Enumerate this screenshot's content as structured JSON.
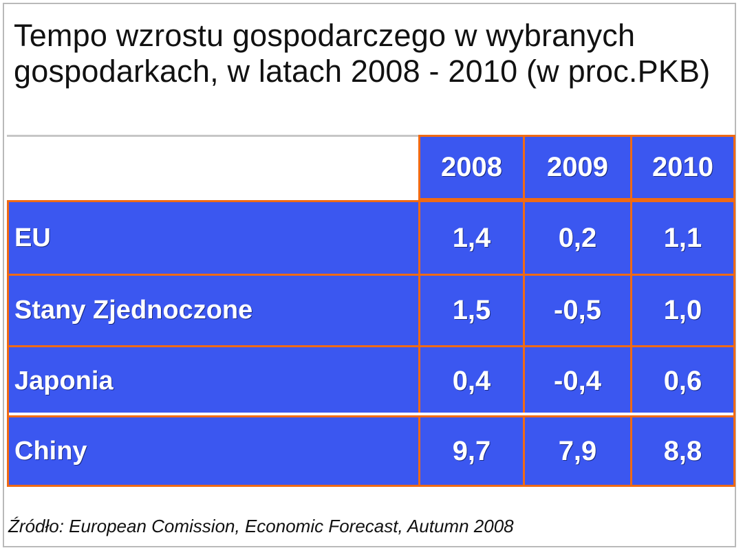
{
  "chart_data": {
    "type": "table",
    "title_line1": "Tempo wzrostu gospodarczego w wybranych",
    "title_line2": "gospodarkach, w latach 2008 - 2010 (w proc.PKB)",
    "columns": [
      "2008",
      "2009",
      "2010"
    ],
    "rows": [
      {
        "label": "EU",
        "values": [
          "1,4",
          "0,2",
          "1,1"
        ]
      },
      {
        "label": "Stany Zjednoczone",
        "values": [
          "1,5",
          "-0,5",
          "1,0"
        ]
      },
      {
        "label": "Japonia",
        "values": [
          "0,4",
          "-0,4",
          "0,6"
        ]
      },
      {
        "label": "Chiny",
        "values": [
          "9,7",
          "7,9",
          "8,8"
        ]
      }
    ],
    "source": "Źródło: European Comission, Economic Forecast, Autumn 2008"
  },
  "colors": {
    "cell_fill": "#3b57f0",
    "cell_border": "#f06a14",
    "text": "#ffffff"
  }
}
